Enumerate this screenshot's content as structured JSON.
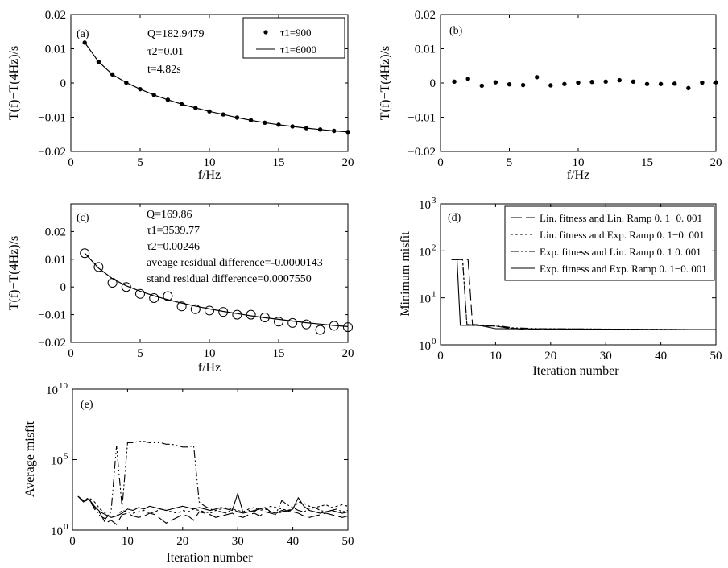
{
  "chart_data": [
    {
      "panel": "(a)",
      "type": "scatter",
      "xlabel": "f/Hz",
      "ylabel": "T(f)−T(4Hz)/s",
      "xlim": [
        0,
        20
      ],
      "ylim": [
        -0.02,
        0.02
      ],
      "xticks": [
        "0",
        "5",
        "10",
        "15",
        "20"
      ],
      "yticks": [
        "0.02",
        "0.01",
        "0",
        "-0.01",
        "-0.02"
      ],
      "annotations": [
        "Q=182.9479",
        "τ2=0.01",
        "t=4.82s"
      ],
      "legend": [
        "τ1=900",
        "τ1=6000"
      ],
      "legend_position": "top-right",
      "x": [
        1,
        2,
        3,
        4,
        5,
        6,
        7,
        8,
        9,
        10,
        11,
        12,
        13,
        14,
        15,
        16,
        17,
        18,
        19,
        20
      ],
      "series": [
        {
          "name": "τ1=900",
          "style": "dots",
          "values": [
            0.0118,
            0.0062,
            0.0025,
            0.0001,
            -0.0018,
            -0.0035,
            -0.0049,
            -0.0062,
            -0.0073,
            -0.0083,
            -0.0092,
            -0.0101,
            -0.0109,
            -0.0116,
            -0.0122,
            -0.0127,
            -0.0132,
            -0.0136,
            -0.014,
            -0.0143
          ]
        },
        {
          "name": "τ1=6000",
          "style": "line",
          "values": [
            0.0118,
            0.0062,
            0.0025,
            0.0001,
            -0.0018,
            -0.0035,
            -0.0049,
            -0.0062,
            -0.0073,
            -0.0083,
            -0.0092,
            -0.0101,
            -0.0109,
            -0.0116,
            -0.0122,
            -0.0127,
            -0.0132,
            -0.0136,
            -0.014,
            -0.0143
          ]
        }
      ]
    },
    {
      "panel": "(b)",
      "type": "scatter",
      "xlabel": "f/Hz",
      "ylabel": "T(f)−T(4Hz)/s",
      "xlim": [
        0,
        20
      ],
      "ylim": [
        -0.02,
        0.02
      ],
      "xticks": [
        "0",
        "5",
        "10",
        "15",
        "20"
      ],
      "yticks": [
        "0.02",
        "0.01",
        "0",
        "-0.01",
        "-0.02"
      ],
      "x": [
        1,
        2,
        3,
        4,
        5,
        6,
        7,
        8,
        9,
        10,
        11,
        12,
        13,
        14,
        15,
        16,
        17,
        18,
        19,
        20
      ],
      "series": [
        {
          "name": "",
          "style": "dots",
          "values": [
            0.0004,
            0.0012,
            -0.0008,
            0.0002,
            -0.0004,
            -0.0006,
            0.0017,
            -0.0007,
            -0.0003,
            0.0001,
            0.0003,
            0.0004,
            0.0008,
            0.0004,
            -0.0003,
            -0.0003,
            -0.0002,
            -0.0015,
            0.0001,
            0.0002
          ]
        }
      ]
    },
    {
      "panel": "(c)",
      "type": "scatter",
      "xlabel": "f/Hz",
      "ylabel": "T(f)−T(4Hz)/s",
      "xlim": [
        0,
        20
      ],
      "ylim": [
        -0.02,
        0.03
      ],
      "xticks": [
        "0",
        "5",
        "10",
        "15",
        "20"
      ],
      "yticks": [
        "0.02",
        "0.01",
        "0",
        "-0.01",
        "-0.02"
      ],
      "annotations": [
        "Q=169.86",
        "τ1=3539.77",
        "τ2=0.00246",
        "aveage residual difference=-0.0000143",
        "stand residual difference=0.0007550"
      ],
      "x": [
        1,
        2,
        3,
        4,
        5,
        6,
        7,
        8,
        9,
        10,
        11,
        12,
        13,
        14,
        15,
        16,
        17,
        18,
        19,
        20
      ],
      "series": [
        {
          "name": "",
          "style": "circles",
          "values": [
            0.0122,
            0.0072,
            0.0015,
            0.0,
            -0.0025,
            -0.004,
            -0.0033,
            -0.007,
            -0.008,
            -0.0085,
            -0.009,
            -0.01,
            -0.01,
            -0.011,
            -0.0125,
            -0.013,
            -0.0135,
            -0.0155,
            -0.014,
            -0.0145
          ]
        },
        {
          "name": "",
          "style": "line",
          "values": [
            0.0122,
            0.0068,
            0.003,
            0.0004,
            -0.0015,
            -0.0032,
            -0.0046,
            -0.0058,
            -0.0069,
            -0.0079,
            -0.0088,
            -0.0096,
            -0.0104,
            -0.0111,
            -0.0117,
            -0.0123,
            -0.0129,
            -0.0134,
            -0.0139,
            -0.0143
          ]
        }
      ]
    },
    {
      "panel": "(d)",
      "type": "line",
      "xlabel": "Iteration number",
      "ylabel": "Minimum misfit",
      "xlim": [
        0,
        50
      ],
      "ylim": [
        1,
        1000
      ],
      "log_y": true,
      "xticks": [
        "0",
        "10",
        "20",
        "30",
        "40",
        "50"
      ],
      "yticks_base": "10",
      "yticks_exp": [
        "3",
        "2",
        "1",
        "0"
      ],
      "legend_position": "top-right",
      "series": [
        {
          "name": "Lin. fitness and Lin. Ramp 0. 1−0. 001",
          "dash": "14,5",
          "points": [
            [
              2,
              65
            ],
            [
              5,
              65
            ],
            [
              5.8,
              2.7
            ],
            [
              9,
              2.6
            ],
            [
              12,
              2.3
            ],
            [
              15,
              2.15
            ],
            [
              50,
              2.1
            ]
          ]
        },
        {
          "name": "Lin. fitness and Exp. Ramp 0. 1−0. 001",
          "dash": "3,3",
          "points": [
            [
              2,
              65
            ],
            [
              4,
              65
            ],
            [
              4.8,
              2.6
            ],
            [
              10,
              2.5
            ],
            [
              14,
              2.2
            ],
            [
              50,
              2.1
            ]
          ]
        },
        {
          "name": "Exp. fitness and Lin. Ramp 0. 1 0. 001",
          "dash": "10,3,2,3,2,3",
          "points": [
            [
              2,
              65
            ],
            [
              4,
              65
            ],
            [
              4.8,
              2.7
            ],
            [
              8,
              2.5
            ],
            [
              11,
              2.5
            ],
            [
              13,
              2.3
            ],
            [
              18,
              2.2
            ],
            [
              50,
              2.1
            ]
          ]
        },
        {
          "name": "Exp. fitness and Exp. Ramp 0. 1−0. 001",
          "dash": "",
          "points": [
            [
              2,
              65
            ],
            [
              3,
              65
            ],
            [
              3.6,
              2.6
            ],
            [
              7,
              2.6
            ],
            [
              10,
              2.2
            ],
            [
              50,
              2.1
            ]
          ]
        }
      ]
    },
    {
      "panel": "(e)",
      "type": "line",
      "xlabel": "Iteration number",
      "ylabel": "Average misfit",
      "xlim": [
        0,
        50
      ],
      "ylim_log10": [
        0,
        10
      ],
      "log_y": true,
      "xticks": [
        "0",
        "10",
        "20",
        "30",
        "40",
        "50"
      ],
      "yticks_base": "10",
      "yticks_exp": [
        "10",
        "5",
        "0"
      ],
      "x": [
        1,
        2,
        3,
        4,
        5,
        6,
        7,
        8,
        9,
        10,
        11,
        12,
        13,
        14,
        15,
        16,
        17,
        18,
        19,
        20,
        21,
        22,
        23,
        24,
        25,
        26,
        27,
        28,
        29,
        30,
        31,
        32,
        33,
        34,
        35,
        36,
        37,
        38,
        39,
        40,
        41,
        42,
        43,
        44,
        45,
        46,
        47,
        48,
        49,
        50
      ],
      "series": [
        {
          "name": "",
          "dash": "14,5",
          "log10_values": [
            2.4,
            2.0,
            2.2,
            1.6,
            1.2,
            0.5,
            0.7,
            0.4,
            1.1,
            1.2,
            1.0,
            0.9,
            1.0,
            1.2,
            1.1,
            0.8,
            0.5,
            0.7,
            0.9,
            1.1,
            1.0,
            0.7,
            1.3,
            1.2,
            1.1,
            0.9,
            1.0,
            1.1,
            1.2,
            1.0,
            0.9,
            1.1,
            1.2,
            1.0,
            1.3,
            1.2,
            1.1,
            1.3,
            1.4,
            1.3,
            1.2,
            1.0,
            0.9,
            1.0,
            1.1,
            1.2,
            1.1,
            1.0,
            0.9,
            1.0
          ]
        },
        {
          "name": "",
          "dash": "3,3",
          "log10_values": [
            2.4,
            2.1,
            2.3,
            2.0,
            1.5,
            1.2,
            0.9,
            1.0,
            1.4,
            1.3,
            1.2,
            1.3,
            1.4,
            1.2,
            1.3,
            1.5,
            1.4,
            1.3,
            1.2,
            1.4,
            1.3,
            1.5,
            1.4,
            1.3,
            1.2,
            1.4,
            1.5,
            1.6,
            1.5,
            1.4,
            1.3,
            1.5,
            1.6,
            1.4,
            1.5,
            1.7,
            1.6,
            1.5,
            1.4,
            1.5,
            2.0,
            1.9,
            1.7,
            1.6,
            1.7,
            1.8,
            1.6,
            1.7,
            1.8,
            1.7
          ]
        },
        {
          "name": "",
          "dash": "10,3,2,3,2,3",
          "log10_values": [
            2.4,
            2.0,
            2.2,
            1.5,
            1.0,
            0.8,
            1.3,
            6.0,
            1.6,
            6.2,
            6.2,
            6.3,
            6.3,
            6.2,
            6.2,
            6.2,
            6.1,
            6.1,
            6.0,
            5.9,
            5.9,
            6.0,
            2.0,
            1.7,
            1.5,
            1.4,
            1.3,
            1.2,
            1.5,
            1.3,
            1.2,
            1.4,
            1.3,
            1.6,
            1.5,
            1.3,
            1.2,
            2.1,
            1.8,
            1.6,
            1.4,
            1.3,
            1.5,
            1.6,
            1.4,
            1.3,
            1.4,
            1.5,
            1.3,
            1.4
          ]
        },
        {
          "name": "",
          "dash": "",
          "log10_values": [
            2.4,
            2.1,
            2.2,
            1.7,
            1.3,
            1.1,
            0.9,
            1.0,
            1.2,
            1.5,
            1.4,
            1.6,
            1.5,
            1.7,
            1.6,
            1.5,
            1.4,
            1.5,
            1.6,
            1.7,
            1.6,
            1.5,
            1.6,
            1.5,
            1.4,
            1.5,
            1.6,
            1.5,
            1.4,
            2.6,
            1.2,
            1.3,
            1.4,
            1.5,
            1.6,
            1.3,
            1.2,
            1.4,
            1.3,
            1.5,
            2.3,
            1.7,
            1.4,
            1.3,
            1.2,
            1.3,
            1.4,
            1.3,
            1.2,
            1.3
          ]
        }
      ]
    }
  ]
}
